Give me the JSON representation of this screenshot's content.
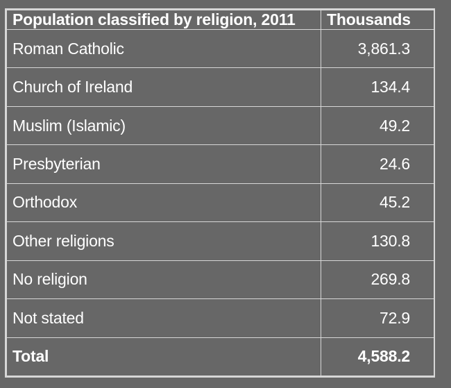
{
  "chart_data": {
    "type": "table",
    "columns": [
      "Population classified by religion, 2011",
      "Thousands"
    ],
    "rows": [
      {
        "label": "Roman Catholic",
        "value": "3,861.3"
      },
      {
        "label": "Church of Ireland",
        "value": "134.4"
      },
      {
        "label": "Muslim (Islamic)",
        "value": "49.2"
      },
      {
        "label": "Presbyterian",
        "value": "24.6"
      },
      {
        "label": "Orthodox",
        "value": "45.2"
      },
      {
        "label": "Other religions",
        "value": "130.8"
      },
      {
        "label": "No religion",
        "value": "269.8"
      },
      {
        "label": "Not stated",
        "value": "72.9"
      }
    ],
    "total": {
      "label": "Total",
      "value": "4,588.2"
    },
    "colors": {
      "background": "#676767",
      "text": "#ffffff",
      "border": "#d7d7d7"
    }
  }
}
